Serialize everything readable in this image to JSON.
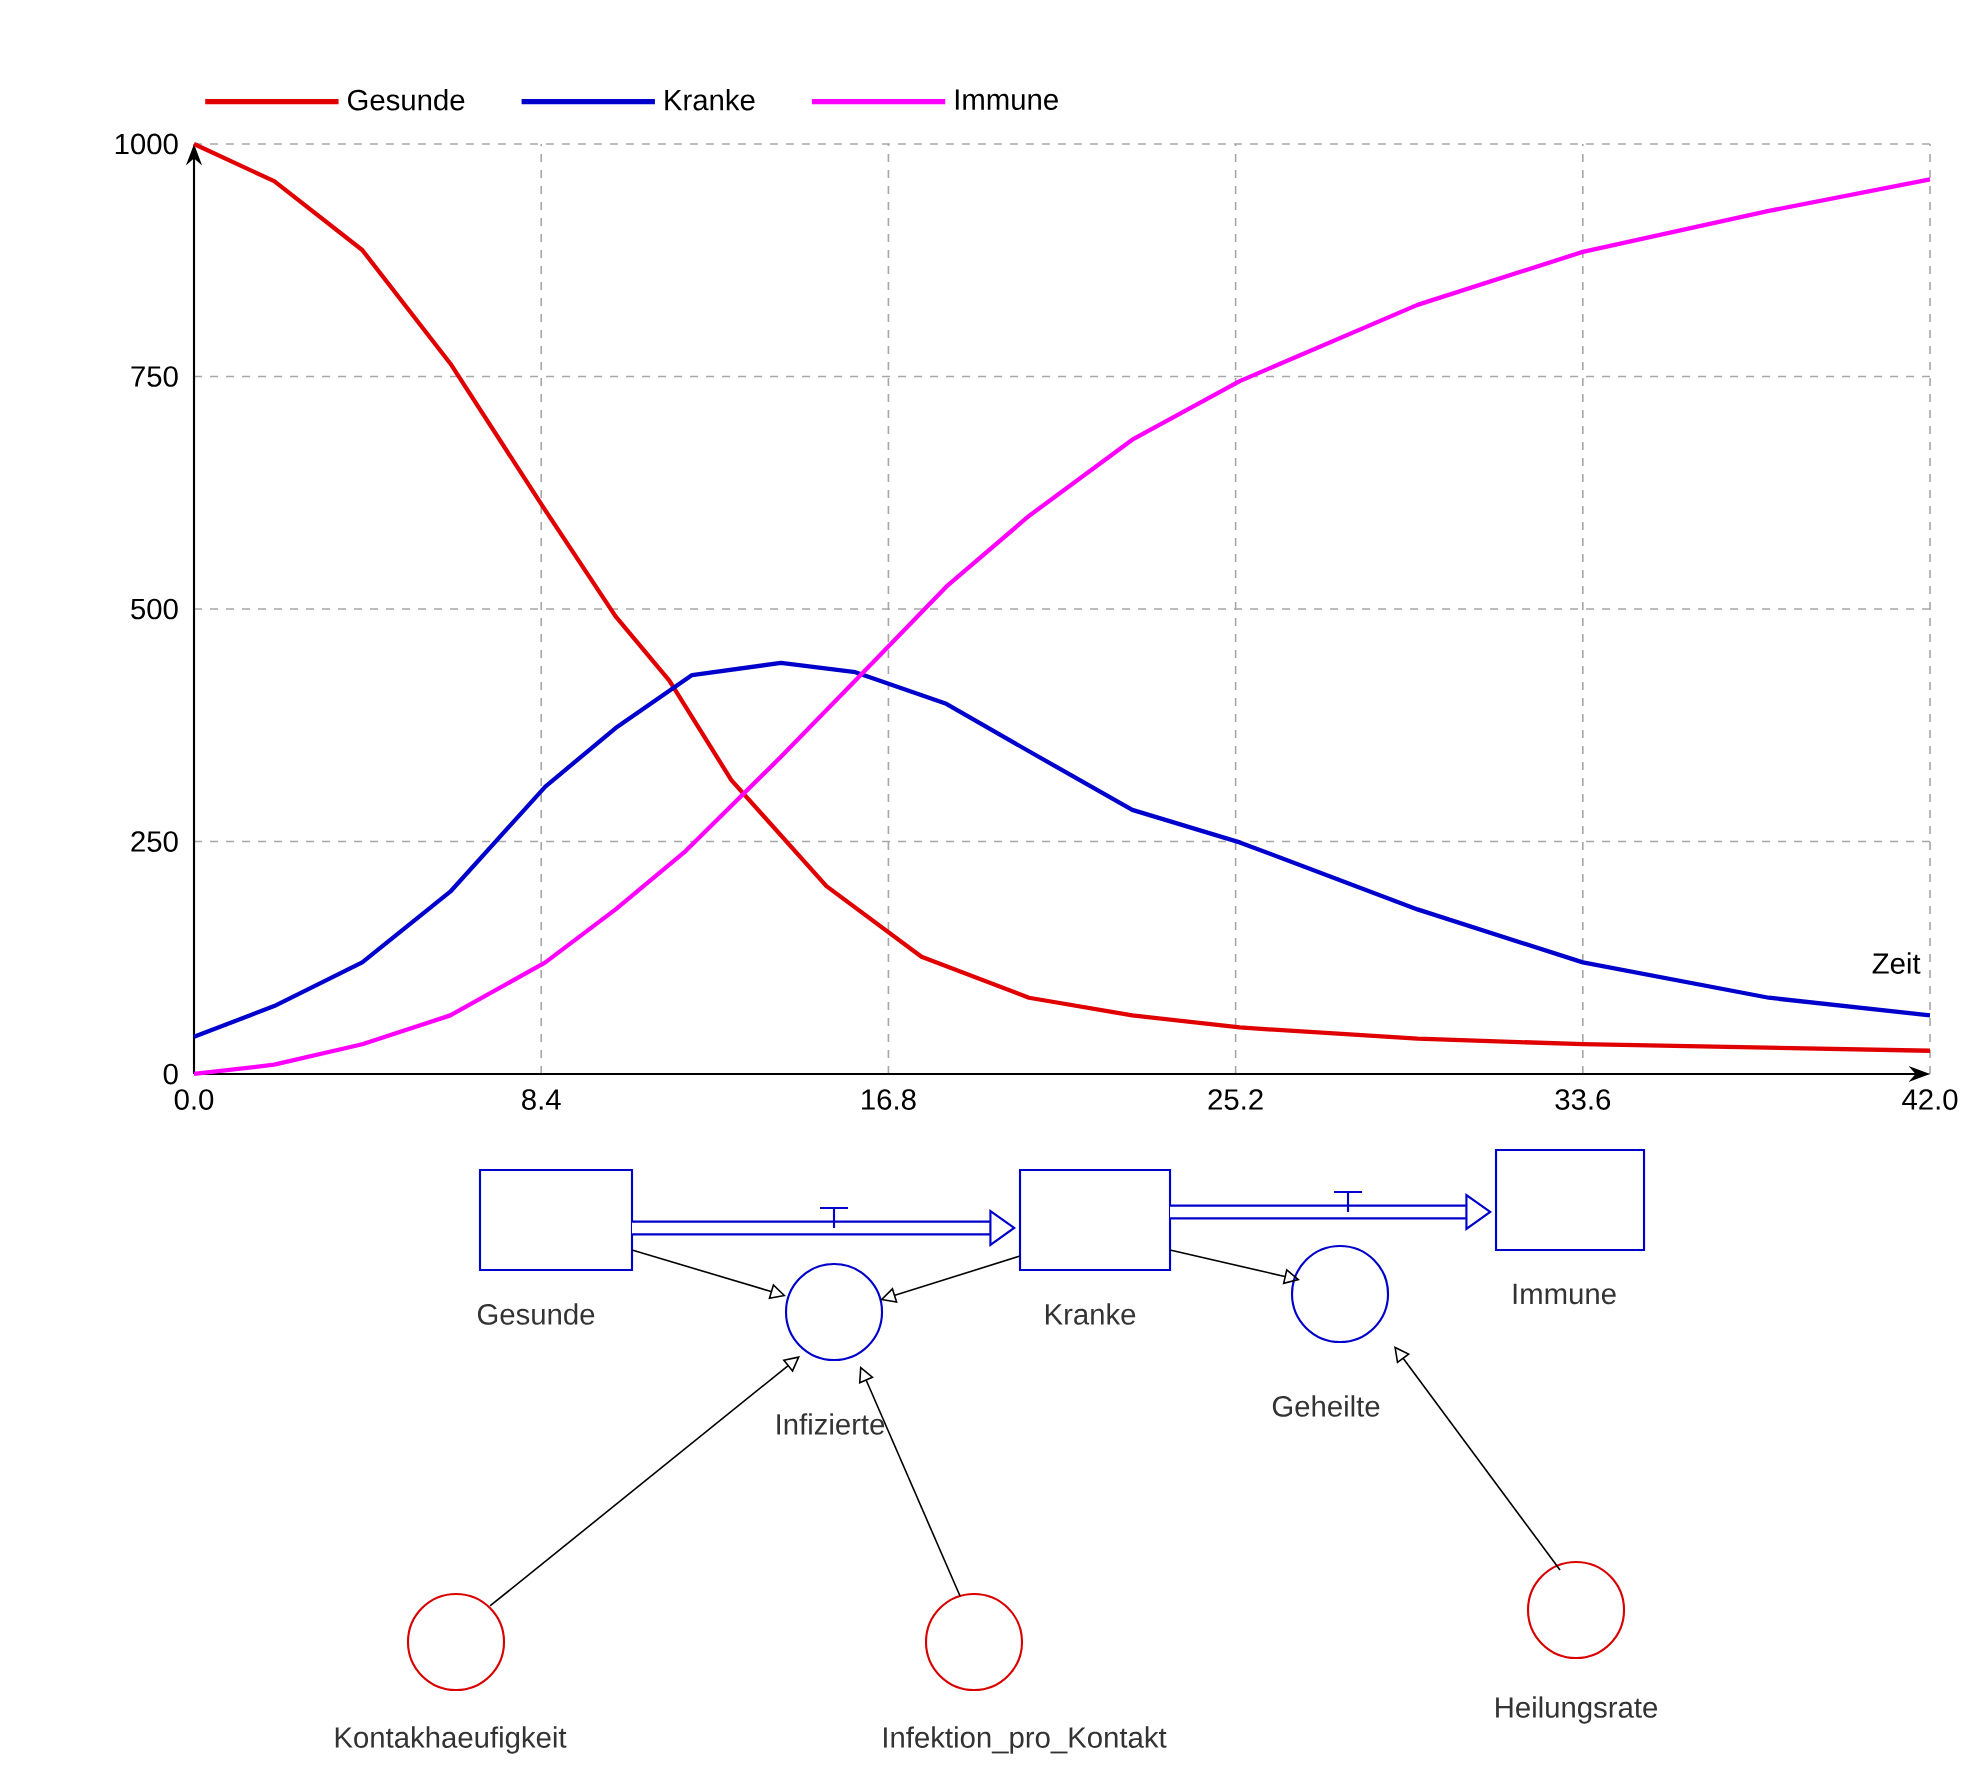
{
  "chart_data": [
    {
      "type": "line",
      "xlabel": "Zeit",
      "xlim": [
        0,
        42
      ],
      "ylim": [
        0,
        1000
      ],
      "xticks": [
        {
          "value": 0,
          "label": "0.0"
        },
        {
          "value": 8.4,
          "label": "8.4"
        },
        {
          "value": 16.8,
          "label": "16.8"
        },
        {
          "value": 25.2,
          "label": "25.2"
        },
        {
          "value": 33.6,
          "label": "33.6"
        },
        {
          "value": 42,
          "label": "42.0"
        }
      ],
      "yticks": [
        0,
        250,
        500,
        750,
        1000
      ],
      "grid": true,
      "legend": "top left",
      "line_style": "solid",
      "marker": "none",
      "x": [
        0,
        1.94,
        4.07,
        6.2,
        8.5,
        10.2,
        11.5,
        13.0,
        15.3,
        17.6,
        20.2,
        22.7,
        25.3,
        29.6,
        33.6,
        42
      ],
      "series": [
        {
          "name": "Gesunde",
          "color": "#e00000",
          "values": [
            1000,
            960,
            886,
            764,
            606,
            492,
            423,
            316,
            202,
            126,
            82,
            63,
            50,
            38,
            32,
            25
          ]
        },
        {
          "name": "Kranke",
          "color": "#0000cc",
          "x": [
            0,
            1.94,
            4.07,
            6.2,
            8.5,
            10.2,
            12.05,
            14.2,
            16.0,
            18.2,
            20.2,
            22.7,
            25.3,
            29.6,
            33.6,
            38.1,
            42
          ],
          "values": [
            40,
            73,
            120,
            196,
            309,
            372,
            429,
            442,
            432,
            398,
            347,
            284,
            249,
            177,
            120,
            82,
            63
          ]
        },
        {
          "name": "Immune",
          "color": "#ff00ff",
          "x": [
            0,
            1.94,
            4.07,
            6.2,
            8.5,
            10.2,
            11.9,
            14.2,
            16.0,
            18.2,
            20.2,
            22.7,
            25.3,
            29.6,
            33.6,
            38.1,
            42
          ],
          "values": [
            0,
            10,
            32,
            63,
            120,
            177,
            240,
            341,
            423,
            524,
            600,
            682,
            745,
            827,
            884,
            928,
            962
          ]
        }
      ]
    },
    {
      "type": "other",
      "annotations": [
        "Gesunde",
        "Kranke",
        "Immune",
        "Infizierte",
        "Geheilte",
        "Kontakhaeufigkeit",
        "Infektion_pro_Kontakt",
        "Heilungsrate"
      ]
    }
  ]
}
